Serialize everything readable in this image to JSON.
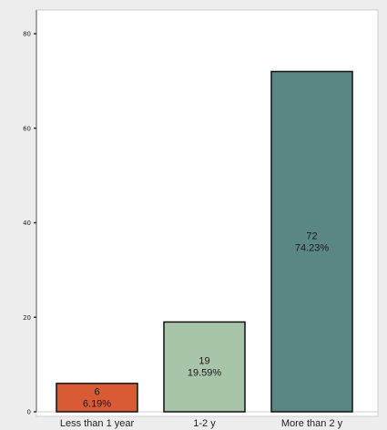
{
  "chart_data": {
    "type": "bar",
    "title": "",
    "xlabel": "",
    "ylabel": "",
    "categories": [
      "Less than 1 year",
      "1-2 y",
      "More than 2 y"
    ],
    "values": [
      6,
      19,
      72
    ],
    "value_labels": [
      "6",
      "19",
      "72"
    ],
    "percent_labels": [
      "6.19%",
      "19.59%",
      "74.23%"
    ],
    "colors": [
      "#d95b35",
      "#a9c5a9",
      "#5a8683"
    ],
    "ylim": [
      0,
      80
    ],
    "yticks": [
      0,
      20,
      40,
      60,
      80
    ],
    "ytick_labels": [
      "0",
      "20",
      "40",
      "60",
      "80"
    ],
    "grid": false,
    "legend": "none"
  }
}
